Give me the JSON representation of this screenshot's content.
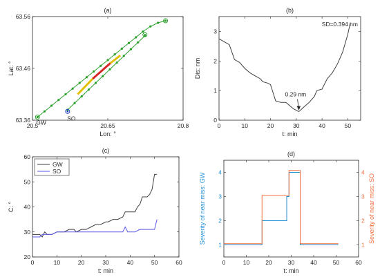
{
  "chart_data": [
    {
      "panel": "(a)",
      "type": "scatter",
      "xlabel": "Lon: °",
      "ylabel": "Lat: °",
      "xlim": [
        20.5,
        20.8
      ],
      "ylim": [
        63.36,
        63.56
      ],
      "xticks": [
        "20.5",
        "20.65",
        "20.8"
      ],
      "yticks": [
        "63.36",
        "63.46",
        "63.56"
      ],
      "annotations": [
        {
          "text": "GW",
          "x": 20.51,
          "y": 63.365
        },
        {
          "text": "SO",
          "x": 20.565,
          "y": 63.373
        }
      ],
      "series": [
        {
          "color": "#2ca02c",
          "x": [
            20.51,
            20.524,
            20.538,
            20.552,
            20.566,
            20.58,
            20.594,
            20.608,
            20.622,
            20.636,
            20.65,
            20.664,
            20.678,
            20.692,
            20.706,
            20.72,
            20.735,
            20.75,
            20.765
          ],
          "y": [
            63.366,
            63.377,
            63.388,
            63.399,
            63.41,
            63.421,
            63.432,
            63.443,
            63.454,
            63.465,
            63.476,
            63.487,
            63.498,
            63.509,
            63.52,
            63.531,
            63.541,
            63.548,
            63.552
          ]
        },
        {
          "color": "#2ca02c",
          "x": [
            20.57,
            20.584,
            20.598,
            20.612,
            20.626,
            20.64,
            20.654,
            20.668,
            20.682,
            20.696,
            20.71,
            20.724
          ],
          "y": [
            63.38,
            63.393,
            63.406,
            63.419,
            63.432,
            63.445,
            63.458,
            63.471,
            63.484,
            63.497,
            63.51,
            63.523
          ]
        }
      ],
      "segments": [
        {
          "color": "#e0c000",
          "x": [
            20.59,
            20.62
          ],
          "y": [
            63.41,
            63.44
          ]
        },
        {
          "color": "#d62728",
          "x": [
            20.62,
            20.655
          ],
          "y": [
            63.44,
            63.47
          ]
        },
        {
          "color": "#e0c000",
          "x": [
            20.655,
            20.675
          ],
          "y": [
            63.47,
            63.485
          ]
        }
      ],
      "markers": [
        {
          "x": 20.51,
          "y": 63.366,
          "color": "#2ca02c"
        },
        {
          "x": 20.57,
          "y": 63.377,
          "color": "#1f3fbf"
        },
        {
          "x": 20.724,
          "y": 63.525,
          "color": "#2ca02c"
        },
        {
          "x": 20.765,
          "y": 63.552,
          "color": "#2ca02c"
        }
      ]
    },
    {
      "panel": "(b)",
      "type": "line",
      "xlabel": "t: min",
      "ylabel": "Dis: nm",
      "xlim": [
        0,
        55
      ],
      "ylim": [
        0,
        3.5
      ],
      "xticks": [
        "0",
        "10",
        "20",
        "30",
        "40",
        "50"
      ],
      "yticks": [
        "0",
        "1",
        "2",
        "3"
      ],
      "legend_text": "SD=0.394 nm",
      "annotations": [
        {
          "text": "0.29 nm",
          "x": 31,
          "y": 0.29
        }
      ],
      "series": [
        {
          "color": "#404040",
          "x": [
            0,
            2,
            4,
            5,
            6,
            8,
            10,
            12,
            14,
            16,
            17,
            19,
            20,
            22,
            24,
            26,
            28,
            29,
            31,
            33,
            35,
            37,
            38,
            40,
            42,
            44,
            46,
            48,
            50,
            51
          ],
          "y": [
            2.75,
            2.65,
            2.55,
            2.3,
            2.05,
            1.95,
            1.75,
            1.6,
            1.5,
            1.4,
            1.3,
            1.25,
            1.2,
            0.65,
            0.6,
            0.6,
            0.45,
            0.38,
            0.29,
            0.45,
            0.6,
            0.8,
            1.0,
            1.05,
            1.4,
            1.6,
            1.9,
            2.3,
            2.9,
            3.3
          ]
        }
      ]
    },
    {
      "panel": "(c)",
      "type": "line",
      "xlabel": "t: min",
      "ylabel": "C: °",
      "xlim": [
        0,
        60
      ],
      "ylim": [
        20,
        60
      ],
      "xticks": [
        "0",
        "10",
        "20",
        "30",
        "40",
        "50",
        "60"
      ],
      "yticks": [
        "20",
        "30",
        "40",
        "50",
        "60"
      ],
      "legend_position": "top-left",
      "series": [
        {
          "name": "GW",
          "color": "#404040",
          "x": [
            0,
            3,
            4,
            5,
            6,
            8,
            10,
            11,
            13,
            15,
            17,
            18,
            20,
            22,
            24,
            26,
            28,
            30,
            31,
            33,
            35,
            37,
            38,
            40,
            42,
            43,
            44,
            45,
            46,
            47,
            48,
            49,
            50,
            51
          ],
          "y": [
            29,
            29,
            28,
            30,
            29,
            29,
            30,
            30,
            30,
            31,
            31,
            30,
            31,
            31,
            32,
            33,
            33,
            34,
            34,
            35,
            35,
            36,
            38,
            38,
            38,
            40,
            41,
            44,
            44,
            44,
            45,
            47,
            53,
            53
          ]
        },
        {
          "name": "SO",
          "color": "#5a5ae6",
          "x": [
            0,
            2,
            3,
            4,
            5,
            6,
            8,
            10,
            12,
            14,
            16,
            18,
            20,
            22,
            24,
            26,
            28,
            30,
            32,
            34,
            36,
            37,
            38,
            39,
            40,
            42,
            44,
            46,
            48,
            50,
            51
          ],
          "y": [
            28,
            28,
            28,
            29,
            29,
            29,
            29,
            30,
            30,
            30,
            30,
            30,
            30,
            30,
            30,
            30,
            30,
            30,
            30,
            30,
            30,
            30,
            32,
            30,
            30,
            30,
            31,
            31,
            31,
            31,
            35
          ]
        }
      ]
    },
    {
      "panel": "(d)",
      "type": "line",
      "xlabel": "t: min",
      "ylabel": "Severity of near miss: GW",
      "ylabel_right": "Severity of near miss: SO",
      "xlim": [
        0,
        60
      ],
      "ylim": [
        0.5,
        4.5
      ],
      "xticks": [
        "0",
        "10",
        "20",
        "30",
        "40",
        "50",
        "60"
      ],
      "yticks": [
        "1",
        "2",
        "3",
        "4"
      ],
      "series": [
        {
          "name": "GW",
          "color": "#1f8fd6",
          "x": [
            0,
            17,
            17,
            28,
            28,
            29,
            29,
            34,
            34,
            51
          ],
          "y": [
            1,
            1,
            2,
            2,
            3,
            3,
            4,
            4,
            1,
            1
          ]
        },
        {
          "name": "SO",
          "color": "#f07040",
          "x": [
            0,
            17,
            17,
            29,
            29,
            34,
            34,
            51
          ],
          "y": [
            1.05,
            1.05,
            3.05,
            3.05,
            4.08,
            4.08,
            1.05,
            1.05
          ]
        }
      ]
    }
  ]
}
